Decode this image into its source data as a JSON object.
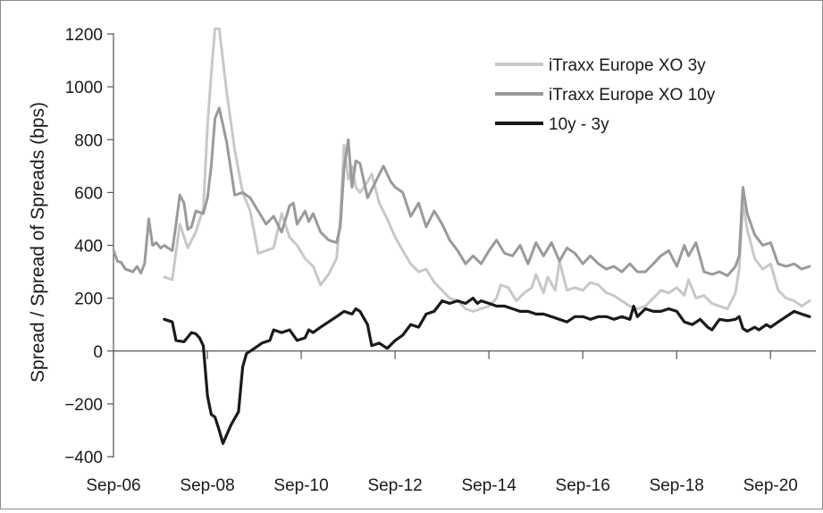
{
  "chart_data": {
    "type": "line",
    "title": "",
    "xlabel": "",
    "ylabel": "Spread / Spread of Spreads (bps)",
    "ylim": [
      -400,
      1200
    ],
    "yticks": [
      1200,
      1000,
      800,
      600,
      400,
      200,
      0,
      "−200",
      "−400"
    ],
    "xlim": [
      2006.667,
      2021.5
    ],
    "xticks": [
      {
        "label": "Sep-06",
        "year": 2006.667
      },
      {
        "label": "Sep-08",
        "year": 2008.667
      },
      {
        "label": "Sep-10",
        "year": 2010.667
      },
      {
        "label": "Sep-12",
        "year": 2012.667
      },
      {
        "label": "Sep-14",
        "year": 2014.667
      },
      {
        "label": "Sep-16",
        "year": 2016.667
      },
      {
        "label": "Sep-18",
        "year": 2018.667
      },
      {
        "label": "Sep-20",
        "year": 2020.667
      }
    ],
    "grid": false,
    "legend_position": "top-right",
    "series": [
      {
        "name": "iTraxx Europe XO 3y",
        "color": "#c8c8c8",
        "points": [
          [
            2007.75,
            280
          ],
          [
            2007.92,
            270
          ],
          [
            2008.08,
            480
          ],
          [
            2008.25,
            390
          ],
          [
            2008.42,
            450
          ],
          [
            2008.58,
            540
          ],
          [
            2008.67,
            850
          ],
          [
            2008.75,
            1050
          ],
          [
            2008.83,
            1220
          ],
          [
            2008.92,
            1220
          ],
          [
            2009.08,
            980
          ],
          [
            2009.25,
            760
          ],
          [
            2009.42,
            600
          ],
          [
            2009.58,
            530
          ],
          [
            2009.75,
            370
          ],
          [
            2009.92,
            380
          ],
          [
            2010.08,
            390
          ],
          [
            2010.25,
            520
          ],
          [
            2010.42,
            430
          ],
          [
            2010.58,
            400
          ],
          [
            2010.75,
            350
          ],
          [
            2010.92,
            320
          ],
          [
            2011.08,
            250
          ],
          [
            2011.25,
            290
          ],
          [
            2011.42,
            350
          ],
          [
            2011.5,
            500
          ],
          [
            2011.58,
            780
          ],
          [
            2011.67,
            650
          ],
          [
            2011.75,
            700
          ],
          [
            2011.83,
            620
          ],
          [
            2011.92,
            600
          ],
          [
            2012.08,
            640
          ],
          [
            2012.17,
            670
          ],
          [
            2012.33,
            560
          ],
          [
            2012.5,
            500
          ],
          [
            2012.67,
            430
          ],
          [
            2012.83,
            380
          ],
          [
            2013.0,
            330
          ],
          [
            2013.17,
            300
          ],
          [
            2013.33,
            310
          ],
          [
            2013.5,
            260
          ],
          [
            2013.67,
            230
          ],
          [
            2013.83,
            200
          ],
          [
            2014.0,
            190
          ],
          [
            2014.17,
            160
          ],
          [
            2014.33,
            150
          ],
          [
            2014.5,
            160
          ],
          [
            2014.67,
            170
          ],
          [
            2014.83,
            200
          ],
          [
            2014.92,
            250
          ],
          [
            2015.08,
            240
          ],
          [
            2015.25,
            190
          ],
          [
            2015.42,
            220
          ],
          [
            2015.58,
            240
          ],
          [
            2015.67,
            290
          ],
          [
            2015.83,
            220
          ],
          [
            2015.92,
            280
          ],
          [
            2016.08,
            230
          ],
          [
            2016.17,
            340
          ],
          [
            2016.33,
            230
          ],
          [
            2016.5,
            240
          ],
          [
            2016.67,
            230
          ],
          [
            2016.83,
            260
          ],
          [
            2017.0,
            250
          ],
          [
            2017.17,
            220
          ],
          [
            2017.33,
            210
          ],
          [
            2017.5,
            190
          ],
          [
            2017.67,
            170
          ],
          [
            2017.83,
            160
          ],
          [
            2018.0,
            170
          ],
          [
            2018.17,
            200
          ],
          [
            2018.33,
            230
          ],
          [
            2018.5,
            220
          ],
          [
            2018.67,
            240
          ],
          [
            2018.83,
            210
          ],
          [
            2018.92,
            270
          ],
          [
            2019.08,
            200
          ],
          [
            2019.25,
            210
          ],
          [
            2019.42,
            180
          ],
          [
            2019.58,
            170
          ],
          [
            2019.75,
            160
          ],
          [
            2019.92,
            220
          ],
          [
            2020.0,
            310
          ],
          [
            2020.08,
            560
          ],
          [
            2020.17,
            460
          ],
          [
            2020.33,
            350
          ],
          [
            2020.5,
            310
          ],
          [
            2020.67,
            330
          ],
          [
            2020.83,
            230
          ],
          [
            2021.0,
            200
          ],
          [
            2021.17,
            190
          ],
          [
            2021.33,
            170
          ],
          [
            2021.5,
            190
          ]
        ]
      },
      {
        "name": "iTraxx Europe XO 10y",
        "color": "#9a9a9a",
        "points": [
          [
            2006.67,
            380
          ],
          [
            2006.75,
            340
          ],
          [
            2006.83,
            335
          ],
          [
            2006.92,
            310
          ],
          [
            2007.08,
            300
          ],
          [
            2007.17,
            320
          ],
          [
            2007.25,
            295
          ],
          [
            2007.33,
            330
          ],
          [
            2007.42,
            500
          ],
          [
            2007.5,
            400
          ],
          [
            2007.58,
            410
          ],
          [
            2007.67,
            390
          ],
          [
            2007.75,
            400
          ],
          [
            2007.83,
            390
          ],
          [
            2007.92,
            380
          ],
          [
            2008.0,
            480
          ],
          [
            2008.08,
            590
          ],
          [
            2008.17,
            560
          ],
          [
            2008.25,
            460
          ],
          [
            2008.33,
            470
          ],
          [
            2008.42,
            530
          ],
          [
            2008.58,
            520
          ],
          [
            2008.67,
            580
          ],
          [
            2008.75,
            700
          ],
          [
            2008.83,
            880
          ],
          [
            2008.92,
            920
          ],
          [
            2009.08,
            790
          ],
          [
            2009.25,
            590
          ],
          [
            2009.42,
            600
          ],
          [
            2009.58,
            580
          ],
          [
            2009.75,
            530
          ],
          [
            2009.92,
            480
          ],
          [
            2010.08,
            510
          ],
          [
            2010.25,
            450
          ],
          [
            2010.42,
            550
          ],
          [
            2010.5,
            560
          ],
          [
            2010.58,
            480
          ],
          [
            2010.75,
            530
          ],
          [
            2010.83,
            490
          ],
          [
            2010.92,
            520
          ],
          [
            2011.08,
            450
          ],
          [
            2011.25,
            420
          ],
          [
            2011.42,
            410
          ],
          [
            2011.5,
            470
          ],
          [
            2011.58,
            690
          ],
          [
            2011.67,
            800
          ],
          [
            2011.75,
            620
          ],
          [
            2011.83,
            720
          ],
          [
            2011.92,
            710
          ],
          [
            2012.08,
            580
          ],
          [
            2012.25,
            640
          ],
          [
            2012.42,
            700
          ],
          [
            2012.58,
            640
          ],
          [
            2012.67,
            620
          ],
          [
            2012.83,
            600
          ],
          [
            2013.0,
            510
          ],
          [
            2013.17,
            560
          ],
          [
            2013.33,
            470
          ],
          [
            2013.5,
            530
          ],
          [
            2013.67,
            480
          ],
          [
            2013.83,
            420
          ],
          [
            2014.0,
            380
          ],
          [
            2014.17,
            330
          ],
          [
            2014.33,
            360
          ],
          [
            2014.5,
            330
          ],
          [
            2014.67,
            380
          ],
          [
            2014.83,
            420
          ],
          [
            2015.0,
            370
          ],
          [
            2015.17,
            360
          ],
          [
            2015.33,
            400
          ],
          [
            2015.5,
            330
          ],
          [
            2015.67,
            410
          ],
          [
            2015.83,
            360
          ],
          [
            2016.0,
            410
          ],
          [
            2016.17,
            340
          ],
          [
            2016.33,
            390
          ],
          [
            2016.5,
            370
          ],
          [
            2016.67,
            330
          ],
          [
            2016.83,
            360
          ],
          [
            2017.0,
            330
          ],
          [
            2017.17,
            310
          ],
          [
            2017.33,
            320
          ],
          [
            2017.5,
            300
          ],
          [
            2017.67,
            330
          ],
          [
            2017.83,
            300
          ],
          [
            2018.0,
            300
          ],
          [
            2018.17,
            330
          ],
          [
            2018.33,
            360
          ],
          [
            2018.5,
            380
          ],
          [
            2018.67,
            320
          ],
          [
            2018.83,
            400
          ],
          [
            2018.92,
            360
          ],
          [
            2019.08,
            410
          ],
          [
            2019.25,
            300
          ],
          [
            2019.42,
            290
          ],
          [
            2019.58,
            300
          ],
          [
            2019.75,
            285
          ],
          [
            2019.92,
            320
          ],
          [
            2020.0,
            360
          ],
          [
            2020.08,
            620
          ],
          [
            2020.17,
            520
          ],
          [
            2020.33,
            440
          ],
          [
            2020.5,
            400
          ],
          [
            2020.67,
            410
          ],
          [
            2020.83,
            330
          ],
          [
            2021.0,
            320
          ],
          [
            2021.17,
            330
          ],
          [
            2021.33,
            310
          ],
          [
            2021.5,
            320
          ]
        ]
      },
      {
        "name": "10y - 3y",
        "color": "#1a1a1a",
        "points": [
          [
            2007.75,
            120
          ],
          [
            2007.92,
            110
          ],
          [
            2008.0,
            40
          ],
          [
            2008.17,
            35
          ],
          [
            2008.33,
            70
          ],
          [
            2008.42,
            65
          ],
          [
            2008.5,
            50
          ],
          [
            2008.58,
            20
          ],
          [
            2008.67,
            -170
          ],
          [
            2008.75,
            -240
          ],
          [
            2008.83,
            -250
          ],
          [
            2008.92,
            -300
          ],
          [
            2009.0,
            -350
          ],
          [
            2009.17,
            -280
          ],
          [
            2009.33,
            -230
          ],
          [
            2009.42,
            -60
          ],
          [
            2009.5,
            -10
          ],
          [
            2009.67,
            10
          ],
          [
            2009.83,
            30
          ],
          [
            2010.0,
            40
          ],
          [
            2010.08,
            80
          ],
          [
            2010.25,
            70
          ],
          [
            2010.42,
            80
          ],
          [
            2010.58,
            40
          ],
          [
            2010.75,
            50
          ],
          [
            2010.83,
            80
          ],
          [
            2010.92,
            70
          ],
          [
            2011.08,
            90
          ],
          [
            2011.25,
            110
          ],
          [
            2011.42,
            130
          ],
          [
            2011.58,
            150
          ],
          [
            2011.75,
            140
          ],
          [
            2011.83,
            160
          ],
          [
            2011.92,
            150
          ],
          [
            2012.08,
            100
          ],
          [
            2012.17,
            20
          ],
          [
            2012.33,
            30
          ],
          [
            2012.5,
            10
          ],
          [
            2012.67,
            40
          ],
          [
            2012.83,
            60
          ],
          [
            2013.0,
            100
          ],
          [
            2013.17,
            90
          ],
          [
            2013.33,
            140
          ],
          [
            2013.5,
            150
          ],
          [
            2013.67,
            190
          ],
          [
            2013.83,
            180
          ],
          [
            2014.0,
            190
          ],
          [
            2014.17,
            180
          ],
          [
            2014.33,
            200
          ],
          [
            2014.42,
            180
          ],
          [
            2014.5,
            190
          ],
          [
            2014.67,
            180
          ],
          [
            2014.83,
            170
          ],
          [
            2015.0,
            170
          ],
          [
            2015.17,
            160
          ],
          [
            2015.33,
            150
          ],
          [
            2015.5,
            150
          ],
          [
            2015.67,
            140
          ],
          [
            2015.83,
            140
          ],
          [
            2016.0,
            130
          ],
          [
            2016.17,
            120
          ],
          [
            2016.33,
            110
          ],
          [
            2016.5,
            130
          ],
          [
            2016.67,
            130
          ],
          [
            2016.83,
            120
          ],
          [
            2017.0,
            130
          ],
          [
            2017.17,
            130
          ],
          [
            2017.33,
            120
          ],
          [
            2017.5,
            130
          ],
          [
            2017.67,
            120
          ],
          [
            2017.75,
            170
          ],
          [
            2017.83,
            130
          ],
          [
            2018.0,
            160
          ],
          [
            2018.17,
            150
          ],
          [
            2018.33,
            150
          ],
          [
            2018.5,
            160
          ],
          [
            2018.67,
            150
          ],
          [
            2018.83,
            110
          ],
          [
            2019.0,
            100
          ],
          [
            2019.17,
            120
          ],
          [
            2019.33,
            90
          ],
          [
            2019.42,
            80
          ],
          [
            2019.58,
            120
          ],
          [
            2019.75,
            115
          ],
          [
            2019.92,
            120
          ],
          [
            2020.0,
            130
          ],
          [
            2020.08,
            85
          ],
          [
            2020.17,
            75
          ],
          [
            2020.33,
            90
          ],
          [
            2020.42,
            80
          ],
          [
            2020.58,
            100
          ],
          [
            2020.67,
            90
          ],
          [
            2020.83,
            110
          ],
          [
            2021.0,
            130
          ],
          [
            2021.17,
            150
          ],
          [
            2021.33,
            140
          ],
          [
            2021.5,
            130
          ]
        ]
      }
    ]
  }
}
